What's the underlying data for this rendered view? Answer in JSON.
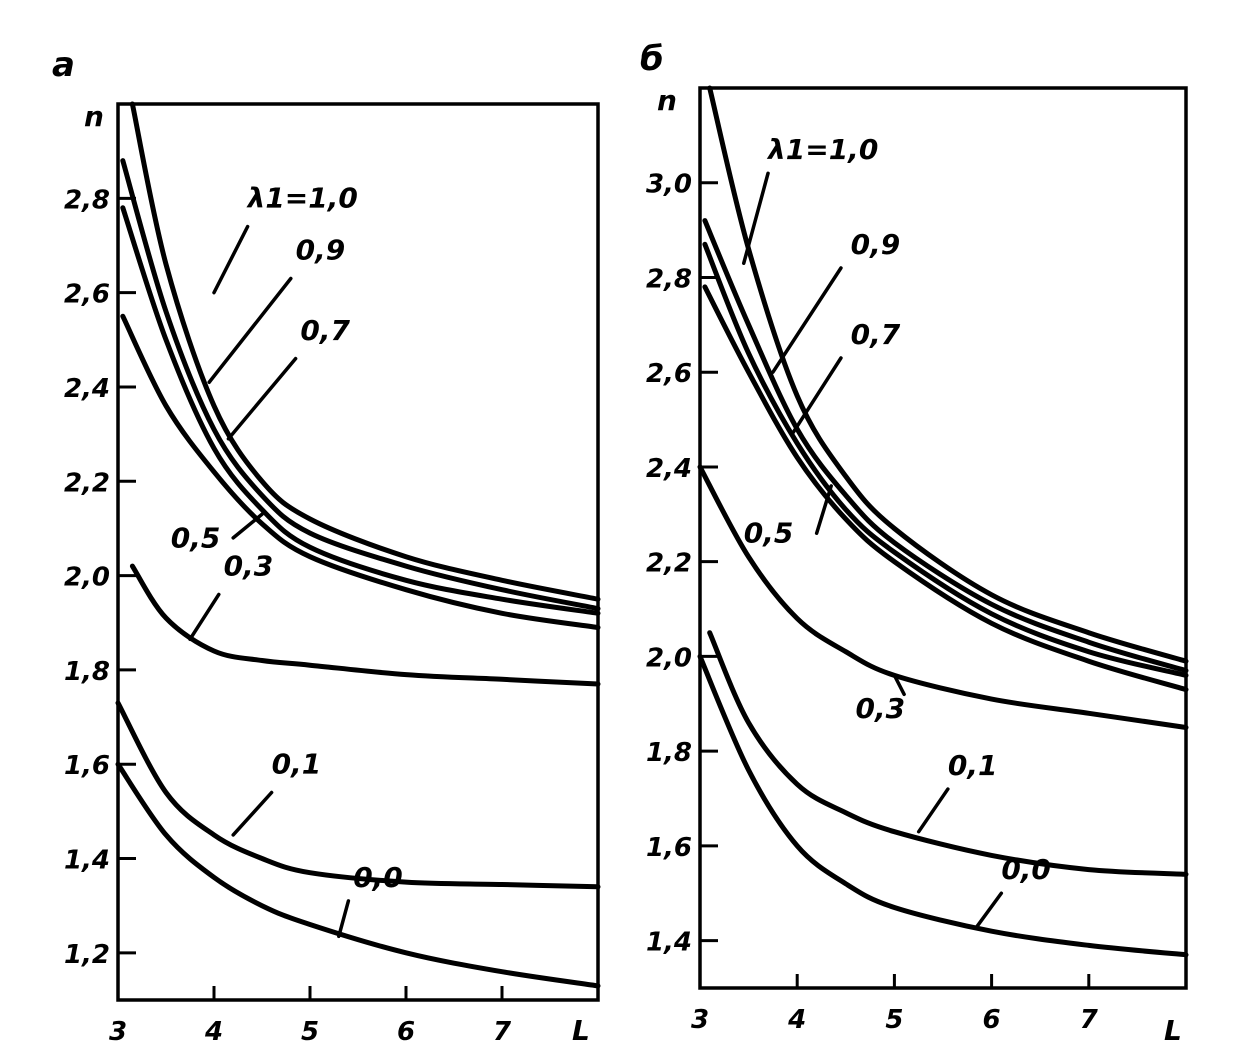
{
  "chart_data": [
    {
      "type": "line",
      "panel_label": "а",
      "xlabel": "L",
      "ylabel": "n",
      "xlim": [
        3,
        8
      ],
      "ylim": [
        1.1,
        3.0
      ],
      "x_ticks": [
        "3",
        "4",
        "5",
        "6",
        "7"
      ],
      "y_ticks": [
        "1,2",
        "1,4",
        "1,6",
        "1,8",
        "2,0",
        "2,2",
        "2,4",
        "2,6",
        "2,8"
      ],
      "y_tick_values": [
        1.2,
        1.4,
        1.6,
        1.8,
        2.0,
        2.2,
        2.4,
        2.6,
        2.8
      ],
      "series": [
        {
          "name": "λ1=1,0",
          "label": "λ1=1,0",
          "x": [
            3.15,
            3.5,
            4.0,
            4.5,
            5.0,
            6.0,
            7.0,
            8.0
          ],
          "y": [
            3.0,
            2.66,
            2.36,
            2.2,
            2.12,
            2.04,
            1.99,
            1.95
          ]
        },
        {
          "name": "0,9",
          "label": "0,9",
          "x": [
            3.05,
            3.5,
            4.0,
            4.5,
            5.0,
            6.0,
            7.0,
            8.0
          ],
          "y": [
            2.88,
            2.56,
            2.31,
            2.17,
            2.09,
            2.02,
            1.97,
            1.93
          ]
        },
        {
          "name": "0,7",
          "label": "0,7",
          "x": [
            3.05,
            3.5,
            4.0,
            4.5,
            5.0,
            6.0,
            7.0,
            8.0
          ],
          "y": [
            2.78,
            2.5,
            2.27,
            2.14,
            2.06,
            1.99,
            1.95,
            1.92
          ]
        },
        {
          "name": "0,5",
          "label": "0,5",
          "x": [
            3.05,
            3.5,
            4.0,
            4.5,
            5.0,
            6.0,
            7.0,
            8.0
          ],
          "y": [
            2.55,
            2.36,
            2.22,
            2.11,
            2.04,
            1.97,
            1.92,
            1.89
          ]
        },
        {
          "name": "0,3",
          "label": "0,3",
          "x": [
            3.15,
            3.5,
            4.0,
            4.5,
            5.0,
            6.0,
            7.0,
            8.0
          ],
          "y": [
            2.02,
            1.91,
            1.84,
            1.82,
            1.81,
            1.79,
            1.78,
            1.77
          ]
        },
        {
          "name": "0,1",
          "label": "0,1",
          "x": [
            3.0,
            3.5,
            4.0,
            4.5,
            5.0,
            6.0,
            7.0,
            8.0
          ],
          "y": [
            1.73,
            1.54,
            1.45,
            1.4,
            1.37,
            1.35,
            1.345,
            1.34
          ]
        },
        {
          "name": "0,0",
          "label": "0,0",
          "x": [
            3.0,
            3.5,
            4.0,
            4.5,
            5.0,
            6.0,
            7.0,
            8.0
          ],
          "y": [
            1.6,
            1.45,
            1.36,
            1.3,
            1.26,
            1.2,
            1.16,
            1.13
          ]
        }
      ]
    },
    {
      "type": "line",
      "panel_label": "б",
      "xlabel": "L",
      "ylabel": "n",
      "xlim": [
        3,
        8
      ],
      "ylim": [
        1.3,
        3.2
      ],
      "x_ticks": [
        "3",
        "4",
        "5",
        "6",
        "7"
      ],
      "y_ticks": [
        "1,4",
        "1,6",
        "1,8",
        "2,0",
        "2,2",
        "2,4",
        "2,6",
        "2,8",
        "3,0"
      ],
      "y_tick_values": [
        1.4,
        1.6,
        1.8,
        2.0,
        2.2,
        2.4,
        2.6,
        2.8,
        3.0
      ],
      "series": [
        {
          "name": "λ1=1,0",
          "label": "λ1=1,0",
          "x": [
            3.1,
            3.5,
            4.0,
            4.5,
            5.0,
            6.0,
            7.0,
            8.0
          ],
          "y": [
            3.2,
            2.86,
            2.55,
            2.38,
            2.27,
            2.13,
            2.05,
            1.99
          ]
        },
        {
          "name": "0,9",
          "label": "0,9",
          "x": [
            3.05,
            3.5,
            4.0,
            4.5,
            5.0,
            6.0,
            7.0,
            8.0
          ],
          "y": [
            2.92,
            2.7,
            2.48,
            2.34,
            2.24,
            2.11,
            2.03,
            1.97
          ]
        },
        {
          "name": "0,7",
          "label": "0,7",
          "x": [
            3.05,
            3.5,
            4.0,
            4.5,
            5.0,
            6.0,
            7.0,
            8.0
          ],
          "y": [
            2.87,
            2.64,
            2.45,
            2.31,
            2.22,
            2.09,
            2.01,
            1.96
          ]
        },
        {
          "name": "0,5",
          "label": "0,5",
          "x": [
            3.05,
            3.5,
            4.0,
            4.5,
            5.0,
            6.0,
            7.0,
            8.0
          ],
          "y": [
            2.78,
            2.6,
            2.42,
            2.29,
            2.2,
            2.07,
            1.99,
            1.93
          ]
        },
        {
          "name": "0,3",
          "label": "0,3",
          "x": [
            3.0,
            3.5,
            4.0,
            4.5,
            5.0,
            6.0,
            7.0,
            8.0
          ],
          "y": [
            2.4,
            2.21,
            2.08,
            2.01,
            1.96,
            1.91,
            1.88,
            1.85
          ]
        },
        {
          "name": "0,1",
          "label": "0,1",
          "x": [
            3.1,
            3.5,
            4.0,
            4.5,
            5.0,
            6.0,
            7.0,
            8.0
          ],
          "y": [
            2.05,
            1.86,
            1.73,
            1.67,
            1.63,
            1.58,
            1.55,
            1.54
          ]
        },
        {
          "name": "0,0",
          "label": "0,0",
          "x": [
            3.0,
            3.5,
            4.0,
            4.5,
            5.0,
            6.0,
            7.0,
            8.0
          ],
          "y": [
            2.0,
            1.76,
            1.6,
            1.52,
            1.47,
            1.42,
            1.39,
            1.37
          ]
        }
      ]
    }
  ]
}
